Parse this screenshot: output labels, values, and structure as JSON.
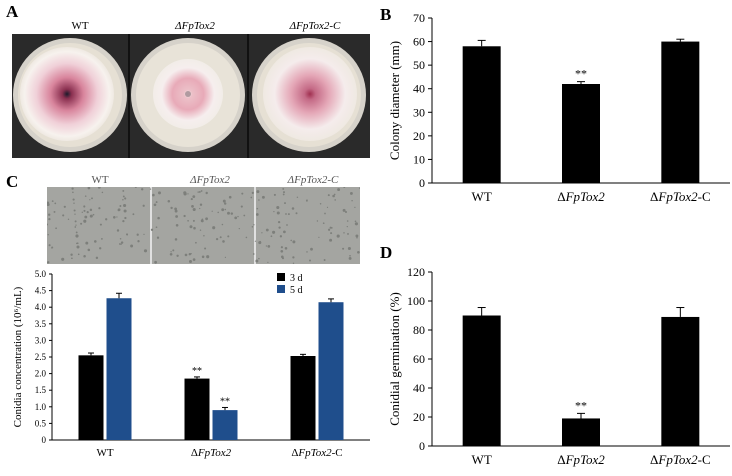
{
  "panelA": {
    "letter": "A",
    "labels": [
      "WT",
      "ΔFpTox2",
      "ΔFpTox2-C"
    ]
  },
  "panelC": {
    "letter": "C",
    "labels": [
      "WT",
      "ΔFpTox2",
      "ΔFpTox2-C"
    ]
  },
  "colors": {
    "black_bar": "#000000",
    "blue_bar": "#1f4e8c",
    "plate_outer": "#ece8df",
    "pink": "#c86a85"
  },
  "chart_data": [
    {
      "panel": "B",
      "type": "bar",
      "categories": [
        "WT",
        "ΔFpTox2",
        "ΔFpTox2-C"
      ],
      "values": [
        58,
        42,
        60
      ],
      "errors": [
        2.5,
        1.0,
        1.0
      ],
      "significance": [
        "",
        "**",
        ""
      ],
      "ylabel": "Colony diameter (mm)",
      "ylim": [
        0,
        70
      ],
      "yticks": [
        0,
        10,
        20,
        30,
        40,
        50,
        60,
        70
      ]
    },
    {
      "panel": "C",
      "type": "bar",
      "categories": [
        "WT",
        "ΔFpTox2",
        "ΔFpTox2-C"
      ],
      "series": [
        {
          "name": "3 d",
          "values": [
            2.55,
            1.85,
            2.53
          ],
          "errors": [
            0.07,
            0.05,
            0.05
          ],
          "significance": [
            "",
            "**",
            ""
          ]
        },
        {
          "name": "5 d",
          "values": [
            4.27,
            0.9,
            4.15
          ],
          "errors": [
            0.15,
            0.08,
            0.1
          ],
          "significance": [
            "",
            "**",
            ""
          ]
        }
      ],
      "ylabel": "Conidia concentration (10⁶/mL)",
      "ylim": [
        0,
        5.0
      ],
      "yticks": [
        "0",
        "0.5",
        "1.0",
        "1.5",
        "2.0",
        "2.5",
        "3.0",
        "3.5",
        "4.0",
        "4.5",
        "5.0"
      ],
      "legend": "top-right"
    },
    {
      "panel": "D",
      "type": "bar",
      "categories": [
        "WT",
        "ΔFpTox2",
        "ΔFpTox2-C"
      ],
      "values": [
        90,
        19,
        89
      ],
      "errors": [
        5.5,
        3.5,
        6.5
      ],
      "significance": [
        "",
        "**",
        ""
      ],
      "ylabel": "Conidial germination (%)",
      "ylim": [
        0,
        120
      ],
      "yticks": [
        0,
        20,
        40,
        60,
        80,
        100,
        120
      ]
    }
  ],
  "panel_letters": {
    "B": "B",
    "D": "D"
  }
}
